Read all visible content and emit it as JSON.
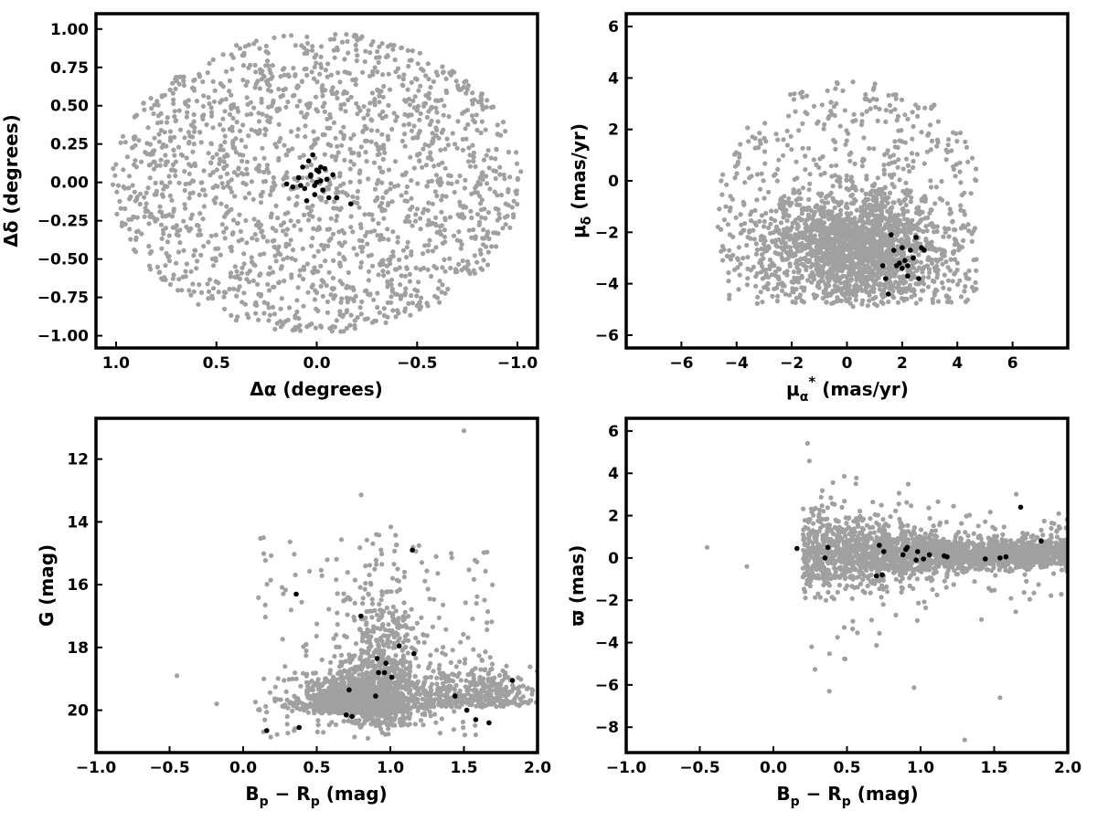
{
  "colors": {
    "field_stars": "#a0a0a0",
    "members": "#000000",
    "frame": "#000000"
  },
  "chart_data": [
    {
      "type": "scatter",
      "panel": "spatial",
      "xlabel_main": "Δα (degrees)",
      "ylabel_main": "Δδ (degrees)",
      "xlim": [
        1.1,
        -1.1
      ],
      "ylim": [
        -1.08,
        1.1
      ],
      "xticks": [
        1.0,
        0.5,
        0.0,
        -0.5,
        -1.0
      ],
      "xtick_labels": [
        "1.0",
        "0.5",
        "0.0",
        "−0.5",
        "−1.0"
      ],
      "yticks": [
        -1.0,
        -0.75,
        -0.5,
        -0.25,
        0.0,
        0.25,
        0.5,
        0.75,
        1.0
      ],
      "ytick_labels": [
        "−1.00",
        "−0.75",
        "−0.50",
        "−0.25",
        "0.00",
        "0.25",
        "0.50",
        "0.75",
        "1.00"
      ],
      "field": {
        "shape": "disk",
        "center": [
          0,
          0
        ],
        "radius": 1.0,
        "count": 1800,
        "seed": 11
      },
      "members": {
        "x": [
          0.03,
          -0.02,
          0.01,
          0.04,
          -0.05,
          0.0,
          0.08,
          -0.1,
          -0.17,
          0.12,
          0.15,
          0.05,
          -0.03,
          0.02,
          -0.06,
          0.07,
          -0.08,
          0.0,
          0.03,
          -0.01,
          0.06,
          -0.04,
          0.09,
          0.01,
          -0.02
        ],
        "y": [
          0.05,
          0.1,
          -0.02,
          0.14,
          0.02,
          0.08,
          -0.02,
          -0.1,
          -0.14,
          -0.03,
          -0.01,
          -0.12,
          -0.05,
          0.18,
          -0.1,
          0.1,
          0.05,
          0.0,
          0.04,
          0.07,
          -0.04,
          0.09,
          0.03,
          -0.08,
          0.01
        ]
      }
    },
    {
      "type": "scatter",
      "panel": "proper-motion",
      "xlabel_main": "μ",
      "xlabel_sub": "α",
      "xlabel_sup": "*",
      "xlabel_rest": " (mas/yr)",
      "ylabel_main": "μ",
      "ylabel_sub": "δ",
      "ylabel_rest": " (mas/yr)",
      "xlim": [
        -8,
        8
      ],
      "ylim": [
        -6.5,
        6.5
      ],
      "xticks": [
        -6,
        -4,
        -2,
        0,
        2,
        4,
        6
      ],
      "xtick_labels": [
        "−6",
        "−4",
        "−2",
        "0",
        "2",
        "4",
        "6"
      ],
      "yticks": [
        -6,
        -4,
        -2,
        0,
        2,
        4,
        6
      ],
      "ytick_labels": [
        "−6",
        "−4",
        "−2",
        "0",
        "2",
        "4",
        "6"
      ],
      "field": {
        "shape": "pm-cloud",
        "center": [
          0,
          -2
        ],
        "count": 2200,
        "seed": 23
      },
      "members": {
        "x": [
          1.6,
          2.0,
          2.3,
          1.8,
          2.5,
          1.4,
          2.1,
          2.7,
          1.9,
          2.2,
          1.5,
          2.6,
          1.7,
          2.4,
          2.0,
          1.3,
          2.8,
          2.2
        ],
        "y": [
          -2.1,
          -2.6,
          -2.7,
          -3.3,
          -2.2,
          -3.8,
          -3.1,
          -2.6,
          -3.2,
          -3.3,
          -4.4,
          -3.8,
          -2.7,
          -3.0,
          -3.4,
          -3.3,
          -2.7,
          -3.7
        ]
      }
    },
    {
      "type": "scatter",
      "panel": "cmd",
      "xlabel_main": "B",
      "xlabel_sub": "p",
      "xlabel_mid": " − R",
      "xlabel_sub2": "p",
      "xlabel_rest": " (mag)",
      "ylabel_main": "G (mag)",
      "xlim": [
        -1.0,
        2.0
      ],
      "ylim": [
        21.35,
        10.7
      ],
      "xticks": [
        -1.0,
        -0.5,
        0.0,
        0.5,
        1.0,
        1.5,
        2.0
      ],
      "xtick_labels": [
        "−1.0",
        "−0.5",
        "0.0",
        "0.5",
        "1.0",
        "1.5",
        "2.0"
      ],
      "yticks": [
        20,
        18,
        16,
        14,
        12
      ],
      "ytick_labels": [
        "20",
        "18",
        "16",
        "14",
        "12"
      ],
      "field": {
        "shape": "cmd-cloud",
        "count": 2300,
        "seed": 37
      },
      "members": {
        "x": [
          0.16,
          0.38,
          0.7,
          0.74,
          0.72,
          0.9,
          0.92,
          0.96,
          1.01,
          0.97,
          0.91,
          1.06,
          1.16,
          0.8,
          0.36,
          1.15,
          1.44,
          1.52,
          1.58,
          1.67,
          1.83
        ],
        "y": [
          20.65,
          20.55,
          20.15,
          20.2,
          19.35,
          19.55,
          18.8,
          18.8,
          18.95,
          18.5,
          18.35,
          17.95,
          18.2,
          17.0,
          16.3,
          14.9,
          19.55,
          20.0,
          20.3,
          20.4,
          19.05
        ]
      }
    },
    {
      "type": "scatter",
      "panel": "parallax",
      "xlabel_main": "B",
      "xlabel_sub": "p",
      "xlabel_mid": " − R",
      "xlabel_sub2": "p",
      "xlabel_rest": " (mag)",
      "ylabel_main": "ϖ (mas)",
      "xlim": [
        -1.0,
        2.0
      ],
      "ylim": [
        -9.2,
        6.6
      ],
      "xticks": [
        -1.0,
        -0.5,
        0.0,
        0.5,
        1.0,
        1.5,
        2.0
      ],
      "xtick_labels": [
        "−1.0",
        "−0.5",
        "0.0",
        "0.5",
        "1.0",
        "1.5",
        "2.0"
      ],
      "yticks": [
        -8,
        -6,
        -4,
        -2,
        0,
        2,
        4,
        6
      ],
      "ytick_labels": [
        "−8",
        "−6",
        "−4",
        "−2",
        "0",
        "2",
        "4",
        "6"
      ],
      "field": {
        "shape": "plx-cloud",
        "count": 2300,
        "seed": 53
      },
      "members": {
        "x": [
          0.16,
          0.37,
          0.35,
          0.72,
          0.75,
          0.7,
          0.74,
          0.9,
          0.91,
          0.88,
          0.98,
          0.97,
          1.02,
          1.06,
          1.16,
          1.18,
          1.44,
          1.54,
          1.58,
          1.68,
          1.82
        ],
        "y": [
          0.45,
          0.5,
          0.0,
          0.6,
          0.3,
          -0.85,
          -0.8,
          0.4,
          0.5,
          0.15,
          0.3,
          -0.1,
          -0.05,
          0.15,
          0.1,
          0.05,
          -0.05,
          0.0,
          0.05,
          2.4,
          0.8
        ]
      }
    }
  ]
}
